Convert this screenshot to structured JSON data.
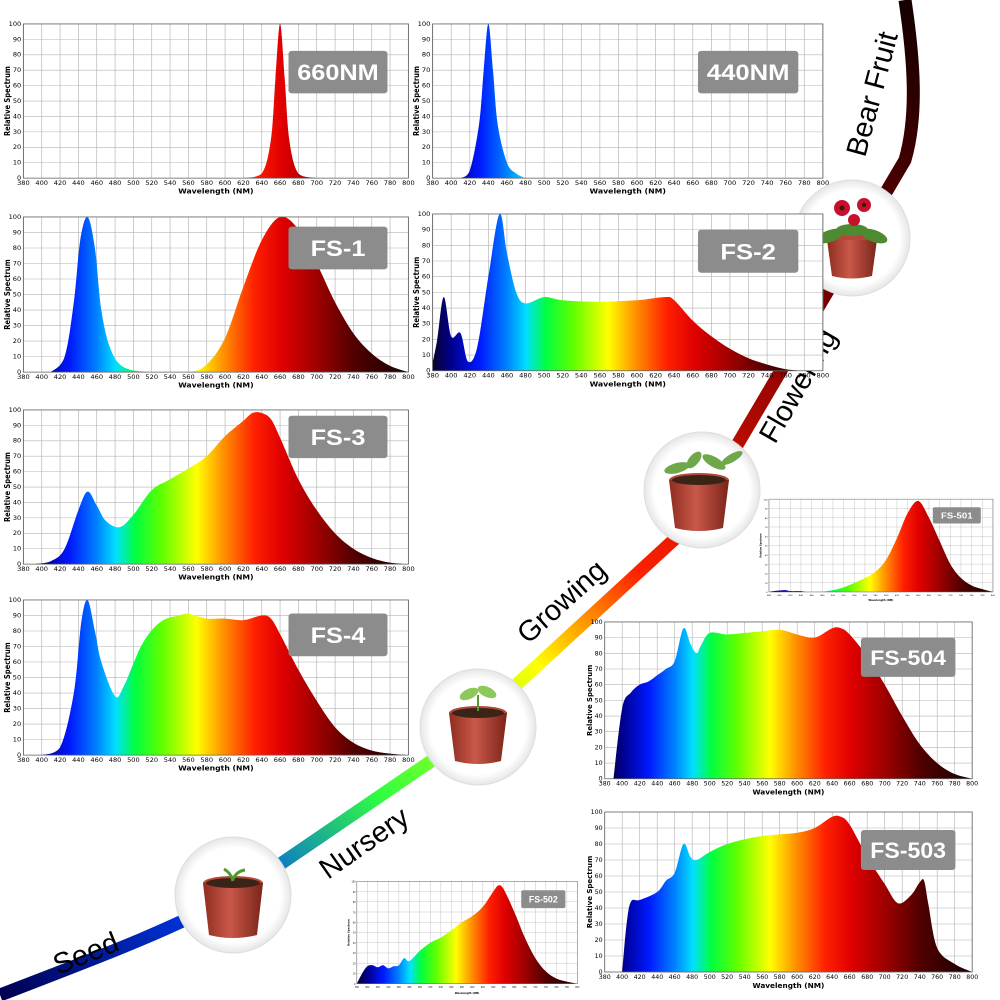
{
  "axis_labels": {
    "x": "Wavelength (NM)",
    "y": "Relative Spectrum"
  },
  "stages": [
    "Seed",
    "Nursery",
    "Growing",
    "Flowering",
    "Bear Fruit"
  ],
  "colors": {
    "title_badge": "#8c8c8c",
    "grid": "#b4b4b4",
    "stem_dark": "#1a0000",
    "stem_red": "#e00000"
  },
  "chart_data": [
    {
      "id": "660nm",
      "type": "area",
      "title": "660NM",
      "xlabel": "Wavelength (NM)",
      "ylabel": "Relative Spectrum",
      "xlim": [
        380,
        800
      ],
      "ylim": [
        0,
        100
      ],
      "grid": true,
      "x": [
        620,
        640,
        650,
        655,
        660,
        665,
        670,
        680,
        700
      ],
      "y": [
        0,
        3,
        25,
        65,
        100,
        65,
        25,
        3,
        0
      ]
    },
    {
      "id": "440nm",
      "type": "area",
      "title": "440NM",
      "xlabel": "Wavelength (NM)",
      "ylabel": "Relative Spectrum",
      "xlim": [
        380,
        800
      ],
      "ylim": [
        0,
        100
      ],
      "grid": true,
      "x": [
        410,
        420,
        430,
        435,
        440,
        445,
        450,
        460,
        470,
        480
      ],
      "y": [
        0,
        5,
        35,
        70,
        100,
        70,
        35,
        10,
        3,
        0
      ]
    },
    {
      "id": "fs1",
      "type": "area",
      "title": "FS-1",
      "xlabel": "Wavelength (NM)",
      "ylabel": "Relative Spectrum",
      "xlim": [
        380,
        800
      ],
      "ylim": [
        0,
        100
      ],
      "grid": true,
      "x": [
        410,
        425,
        435,
        442,
        450,
        458,
        465,
        475,
        490,
        520,
        560,
        580,
        600,
        620,
        640,
        660,
        680,
        700,
        720,
        740,
        760,
        780,
        800
      ],
      "y": [
        0,
        10,
        45,
        85,
        100,
        80,
        40,
        15,
        3,
        0,
        0,
        5,
        22,
        55,
        85,
        100,
        92,
        70,
        45,
        25,
        12,
        4,
        0
      ]
    },
    {
      "id": "fs2",
      "type": "area",
      "title": "FS-2",
      "xlabel": "Wavelength (NM)",
      "ylabel": "Relative Spectrum",
      "xlim": [
        380,
        800
      ],
      "ylim": [
        0,
        100
      ],
      "grid": true,
      "x": [
        380,
        385,
        392,
        400,
        410,
        418,
        428,
        440,
        452,
        460,
        470,
        480,
        500,
        520,
        560,
        600,
        630,
        640,
        660,
        680,
        700,
        720,
        740,
        760,
        780
      ],
      "y": [
        5,
        20,
        47,
        22,
        24,
        6,
        15,
        60,
        100,
        75,
        50,
        43,
        47,
        45,
        44,
        45,
        47,
        45,
        32,
        22,
        14,
        8,
        4,
        1,
        0
      ]
    },
    {
      "id": "fs3",
      "type": "area",
      "title": "FS-3",
      "xlabel": "Wavelength (NM)",
      "ylabel": "Relative Spectrum",
      "xlim": [
        380,
        800
      ],
      "ylim": [
        0,
        100
      ],
      "grid": true,
      "x": [
        390,
        410,
        425,
        440,
        450,
        460,
        470,
        485,
        500,
        520,
        540,
        560,
        580,
        600,
        620,
        630,
        640,
        650,
        660,
        680,
        700,
        720,
        740,
        760,
        780,
        800
      ],
      "y": [
        0,
        2,
        10,
        35,
        47,
        38,
        28,
        24,
        32,
        48,
        55,
        62,
        70,
        83,
        93,
        98,
        98,
        94,
        82,
        55,
        35,
        20,
        10,
        4,
        1,
        0
      ]
    },
    {
      "id": "fs4",
      "type": "area",
      "title": "FS-4",
      "xlabel": "Wavelength (NM)",
      "ylabel": "Relative Spectrum",
      "xlim": [
        380,
        800
      ],
      "ylim": [
        0,
        100
      ],
      "grid": true,
      "x": [
        400,
        420,
        435,
        443,
        450,
        458,
        465,
        480,
        490,
        510,
        530,
        550,
        560,
        580,
        600,
        620,
        640,
        650,
        660,
        680,
        700,
        720,
        740,
        760,
        780,
        800
      ],
      "y": [
        0,
        5,
        40,
        85,
        100,
        80,
        60,
        38,
        45,
        72,
        86,
        90,
        91,
        88,
        88,
        87,
        90,
        88,
        78,
        55,
        35,
        18,
        8,
        3,
        1,
        0
      ]
    },
    {
      "id": "fs501",
      "type": "area",
      "title": "FS-501",
      "xlabel": "Wavelength (NM)",
      "ylabel": "Relative Spectrum",
      "xlim": [
        380,
        800
      ],
      "ylim": [
        0,
        100
      ],
      "grid": true,
      "x": [
        380,
        390,
        410,
        420,
        440,
        450,
        470,
        490,
        520,
        560,
        580,
        600,
        620,
        640,
        660,
        680,
        700,
        720,
        740,
        760,
        780,
        800
      ],
      "y": [
        0,
        1,
        2,
        1,
        1,
        0,
        0,
        1,
        5,
        15,
        22,
        35,
        58,
        85,
        98,
        80,
        55,
        30,
        15,
        7,
        3,
        0
      ]
    },
    {
      "id": "fs504",
      "type": "area",
      "title": "FS-504",
      "xlabel": "Wavelength (NM)",
      "ylabel": "Relative Spectrum",
      "xlim": [
        380,
        800
      ],
      "ylim": [
        0,
        100
      ],
      "grid": true,
      "x": [
        390,
        400,
        410,
        420,
        430,
        440,
        450,
        460,
        470,
        478,
        485,
        490,
        500,
        520,
        540,
        560,
        580,
        600,
        620,
        640,
        650,
        660,
        680,
        700,
        720,
        740,
        760,
        780,
        800
      ],
      "y": [
        0,
        45,
        55,
        60,
        62,
        66,
        70,
        75,
        96,
        86,
        80,
        85,
        93,
        92,
        93,
        94,
        95,
        92,
        90,
        96,
        96,
        92,
        78,
        60,
        40,
        22,
        10,
        3,
        0
      ]
    },
    {
      "id": "fs503",
      "type": "area",
      "title": "FS-503",
      "xlabel": "Wavelength (NM)",
      "ylabel": "Relative Spectrum",
      "xlim": [
        380,
        800
      ],
      "ylim": [
        0,
        100
      ],
      "grid": true,
      "x": [
        400,
        405,
        410,
        420,
        440,
        450,
        460,
        470,
        478,
        485,
        500,
        520,
        540,
        560,
        580,
        600,
        620,
        640,
        650,
        660,
        680,
        700,
        715,
        730,
        740,
        745,
        750,
        760,
        780,
        800
      ],
      "y": [
        0,
        30,
        44,
        45,
        50,
        57,
        62,
        80,
        72,
        70,
        75,
        80,
        83,
        85,
        86,
        87,
        90,
        97,
        97,
        92,
        72,
        55,
        43,
        48,
        56,
        57,
        42,
        15,
        5,
        0
      ]
    },
    {
      "id": "fs502",
      "type": "area",
      "title": "FS-502",
      "xlabel": "Wavelength (NM)",
      "ylabel": "Relative Spectrum",
      "xlim": [
        380,
        800
      ],
      "ylim": [
        0,
        100
      ],
      "grid": true,
      "x": [
        380,
        390,
        400,
        410,
        420,
        430,
        440,
        450,
        460,
        470,
        480,
        500,
        520,
        540,
        560,
        580,
        600,
        620,
        640,
        650,
        660,
        680,
        700,
        720,
        740,
        760,
        780,
        800
      ],
      "y": [
        0,
        10,
        17,
        18,
        16,
        18,
        15,
        17,
        18,
        25,
        22,
        32,
        40,
        45,
        52,
        60,
        66,
        75,
        90,
        96,
        92,
        70,
        45,
        25,
        12,
        5,
        2,
        0
      ]
    }
  ]
}
